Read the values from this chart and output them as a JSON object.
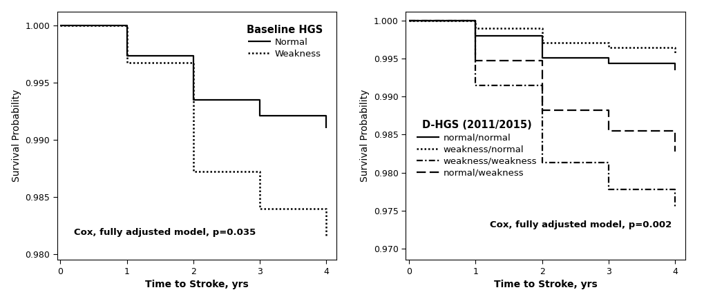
{
  "panel1": {
    "title": "Baseline HGS",
    "xlabel": "Time to Stroke, yrs",
    "ylabel": "Survival Probability",
    "annotation": "Cox, fully adjusted model, p=0.035",
    "ylim": [
      0.9795,
      1.0012
    ],
    "xlim": [
      -0.05,
      4.15
    ],
    "yticks": [
      0.98,
      0.985,
      0.99,
      0.995,
      1.0
    ],
    "xticks": [
      0,
      1,
      2,
      3,
      4
    ],
    "series": [
      {
        "label": "Normal",
        "linestyle": "solid",
        "linewidth": 1.6,
        "color": "#000000",
        "x": [
          0,
          1,
          2,
          3,
          4
        ],
        "y": [
          1.0,
          0.9973,
          0.9935,
          0.9921,
          0.991
        ]
      },
      {
        "label": "Weakness",
        "linestyle": "dotted",
        "linewidth": 1.8,
        "color": "#000000",
        "x": [
          0,
          1,
          2,
          3,
          4
        ],
        "y": [
          1.0,
          0.9967,
          0.9872,
          0.984,
          0.9815
        ]
      }
    ]
  },
  "panel2": {
    "title": "D-HGS (2011/2015)",
    "xlabel": "Time to Stroke, yrs",
    "ylabel": "Survival Probability",
    "annotation": "Cox, fully adjusted model, p=0.002",
    "ylim": [
      0.9685,
      1.0012
    ],
    "xlim": [
      -0.05,
      4.15
    ],
    "yticks": [
      0.97,
      0.975,
      0.98,
      0.985,
      0.99,
      0.995,
      1.0
    ],
    "xticks": [
      0,
      1,
      2,
      3,
      4
    ],
    "series": [
      {
        "label": "normal/normal",
        "linestyle": "solid",
        "linewidth": 1.6,
        "color": "#000000",
        "x": [
          0,
          1,
          2,
          3,
          4
        ],
        "y": [
          1.0,
          0.998,
          0.9951,
          0.9944,
          0.9935
        ]
      },
      {
        "label": "weakness/normal",
        "linestyle": "dotted",
        "linewidth": 1.8,
        "color": "#000000",
        "x": [
          0,
          1,
          2,
          3,
          4
        ],
        "y": [
          1.0,
          0.999,
          0.9971,
          0.9965,
          0.9957
        ]
      },
      {
        "label": "weakness/weakness",
        "linestyle": "dashdot",
        "linewidth": 1.6,
        "color": "#000000",
        "x": [
          0,
          1,
          2,
          3,
          4
        ],
        "y": [
          1.0,
          0.9915,
          0.9813,
          0.9778,
          0.9755
        ]
      },
      {
        "label": "normal/weakness",
        "linestyle": "dashed",
        "linewidth": 1.6,
        "color": "#000000",
        "x": [
          0,
          1,
          2,
          3,
          4
        ],
        "y": [
          1.0,
          0.9947,
          0.9882,
          0.9855,
          0.9828
        ]
      }
    ]
  },
  "figure_bg": "#ffffff",
  "axes_bg": "#ffffff",
  "font_family": "Arial",
  "title_fontsize": 10,
  "label_fontsize": 10,
  "tick_fontsize": 9,
  "legend_fontsize": 9.5,
  "annotation_fontsize": 9.5
}
